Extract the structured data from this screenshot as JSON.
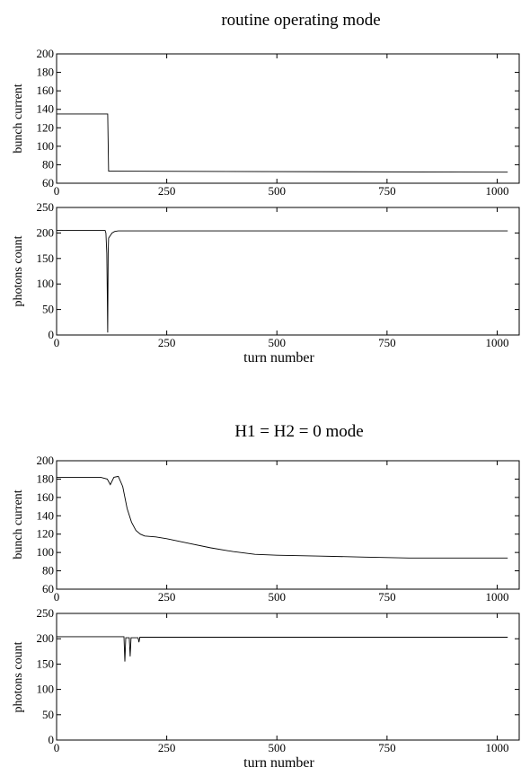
{
  "chart_data": [
    {
      "group": "routine operating mode",
      "title": "routine operating mode",
      "type": "line",
      "ylabel": "bunch current",
      "xlabel": "",
      "xlim": [
        0,
        1050
      ],
      "ylim": [
        60,
        200
      ],
      "xticks": [
        0,
        250,
        500,
        750,
        1000
      ],
      "yticks": [
        60,
        80,
        100,
        120,
        140,
        160,
        180,
        200
      ],
      "grid": false,
      "series": [
        {
          "x": [
            0,
            115,
            116,
            118,
            125,
            1024
          ],
          "y": [
            135,
            135,
            135,
            73,
            73,
            72
          ]
        }
      ]
    },
    {
      "group": "routine operating mode",
      "title": "",
      "type": "line",
      "ylabel": "photons count",
      "xlabel": "turn number",
      "xlim": [
        0,
        1050
      ],
      "ylim": [
        0,
        250
      ],
      "xticks": [
        0,
        250,
        500,
        750,
        1000
      ],
      "yticks": [
        0,
        50,
        100,
        150,
        200,
        250
      ],
      "grid": false,
      "series": [
        {
          "x": [
            0,
            110,
            112,
            114,
            115,
            116,
            117,
            118,
            122,
            126,
            132,
            140,
            1024
          ],
          "y": [
            205,
            205,
            200,
            160,
            85,
            5,
            160,
            190,
            195,
            200,
            203,
            204,
            204
          ]
        }
      ]
    },
    {
      "group": "H1 = H2 = 0 mode",
      "title": "H1 = H2 = 0 mode",
      "type": "line",
      "ylabel": "bunch current",
      "xlabel": "",
      "xlim": [
        0,
        1050
      ],
      "ylim": [
        60,
        200
      ],
      "xticks": [
        0,
        250,
        500,
        750,
        1000
      ],
      "yticks": [
        60,
        80,
        100,
        120,
        140,
        160,
        180,
        200
      ],
      "grid": false,
      "series": [
        {
          "x": [
            0,
            100,
            115,
            122,
            130,
            140,
            150,
            160,
            170,
            180,
            190,
            200,
            225,
            250,
            300,
            350,
            400,
            450,
            500,
            600,
            700,
            800,
            900,
            1024
          ],
          "y": [
            182,
            182,
            180,
            174,
            182,
            183,
            172,
            148,
            133,
            124,
            120,
            118,
            117,
            115,
            110,
            105,
            101,
            98,
            97,
            96,
            95,
            94,
            94,
            94
          ]
        }
      ]
    },
    {
      "group": "H1 = H2 = 0 mode",
      "title": "",
      "type": "line",
      "ylabel": "photons count",
      "xlabel": "turn number",
      "xlim": [
        0,
        1050
      ],
      "ylim": [
        0,
        250
      ],
      "xticks": [
        0,
        250,
        500,
        750,
        1000
      ],
      "yticks": [
        0,
        50,
        100,
        150,
        200,
        250
      ],
      "grid": false,
      "series": [
        {
          "x": [
            0,
            153,
            155,
            157,
            165,
            167,
            169,
            185,
            187,
            189,
            1024
          ],
          "y": [
            204,
            204,
            155,
            202,
            202,
            165,
            202,
            202,
            193,
            203,
            203
          ]
        }
      ]
    }
  ]
}
